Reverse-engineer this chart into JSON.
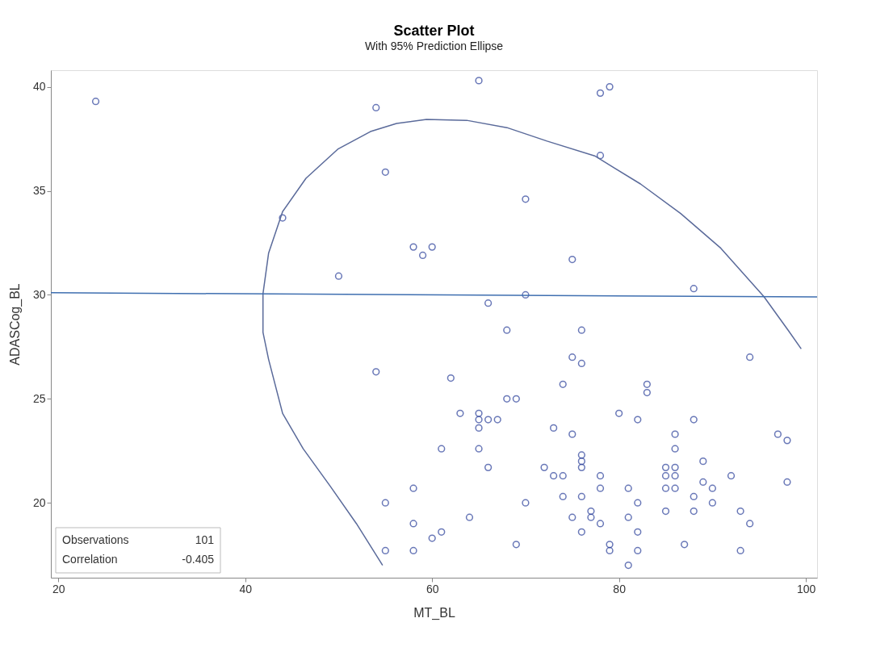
{
  "chart_data": {
    "type": "scatter",
    "title": "Scatter Plot",
    "subtitle": "With 95% Prediction Ellipse",
    "xlabel": "MT_BL",
    "ylabel": "ADASCog_BL",
    "xlim": [
      19.2,
      101.2
    ],
    "ylim": [
      16.4,
      40.8
    ],
    "xticks": [
      20,
      40,
      60,
      80,
      100
    ],
    "yticks": [
      20,
      25,
      30,
      35,
      40
    ],
    "grid": false,
    "annotations": [
      "Observations 101",
      "Correlation -0.405"
    ],
    "series": [
      {
        "color": "#2a3f9a",
        "marker": "circle",
        "x": [
          24,
          54,
          55,
          44,
          58,
          59,
          60,
          50,
          65,
          78,
          79,
          78,
          70,
          75,
          88,
          66,
          70,
          68,
          76,
          75,
          76,
          62,
          74,
          83,
          83,
          68,
          69,
          63,
          65,
          65,
          65,
          66,
          67,
          80,
          82,
          88,
          73,
          75,
          86,
          97,
          98,
          61,
          65,
          86,
          76,
          76,
          76,
          66,
          72,
          73,
          74,
          78,
          89,
          85,
          85,
          86,
          86,
          85,
          86,
          92,
          98,
          89,
          90,
          78,
          81,
          74,
          76,
          88,
          70,
          82,
          90,
          64,
          75,
          77,
          77,
          81,
          85,
          88,
          93,
          78,
          94,
          61,
          60,
          76,
          82,
          69,
          79,
          79,
          87,
          82,
          93,
          81,
          94,
          54,
          58,
          55,
          58,
          55,
          58
        ],
        "values": [
          39.3,
          39.0,
          35.9,
          33.7,
          32.3,
          31.9,
          32.3,
          30.9,
          40.3,
          39.7,
          40.0,
          36.7,
          34.6,
          31.7,
          30.3,
          29.6,
          30.0,
          28.3,
          28.3,
          27.0,
          26.7,
          26.0,
          25.7,
          25.7,
          25.3,
          25.0,
          25.0,
          24.3,
          24.3,
          24.0,
          23.6,
          24.0,
          24.0,
          24.3,
          24.0,
          24.0,
          23.6,
          23.3,
          23.3,
          23.3,
          23.0,
          22.6,
          22.6,
          22.6,
          22.3,
          22.0,
          21.7,
          21.7,
          21.7,
          21.3,
          21.3,
          21.3,
          22.0,
          21.7,
          21.3,
          21.7,
          21.3,
          20.7,
          20.7,
          21.3,
          21.0,
          21.0,
          20.7,
          20.7,
          20.7,
          20.3,
          20.3,
          20.3,
          20.0,
          20.0,
          20.0,
          19.3,
          19.3,
          19.6,
          19.3,
          19.3,
          19.6,
          19.6,
          19.6,
          19.0,
          19.0,
          18.6,
          18.3,
          18.6,
          18.6,
          18.0,
          18.0,
          17.7,
          18.0,
          17.7,
          17.7,
          17.0,
          27.0,
          26.3,
          20.7,
          20.0,
          19.0,
          17.7,
          17.7
        ]
      },
      {
        "type": "line",
        "color": "#5a6a9a",
        "line_style": "solid",
        "x": [
          54.7,
          51.9,
          49.1,
          46.2,
          44.0,
          42.5,
          41.9,
          41.9,
          42.5,
          44.0,
          46.5,
          49.9,
          53.4,
          56.2,
          59.4,
          63.7,
          68.0,
          72.3,
          77.4,
          82.3,
          86.6,
          90.9,
          95.5,
          98.1,
          99.5
        ],
        "values": [
          17.0,
          19.0,
          20.8,
          22.6,
          24.3,
          26.9,
          28.2,
          30.05,
          32.0,
          34.0,
          35.6,
          37.0,
          37.85,
          38.24,
          38.43,
          38.39,
          38.04,
          37.39,
          36.68,
          35.33,
          33.91,
          32.24,
          29.92,
          28.3,
          27.4
        ]
      },
      {
        "type": "line",
        "color": "#3f6fb0",
        "line_style": "solid",
        "x": [
          19.2,
          101.2
        ],
        "values": [
          30.1,
          29.9
        ]
      }
    ]
  }
}
